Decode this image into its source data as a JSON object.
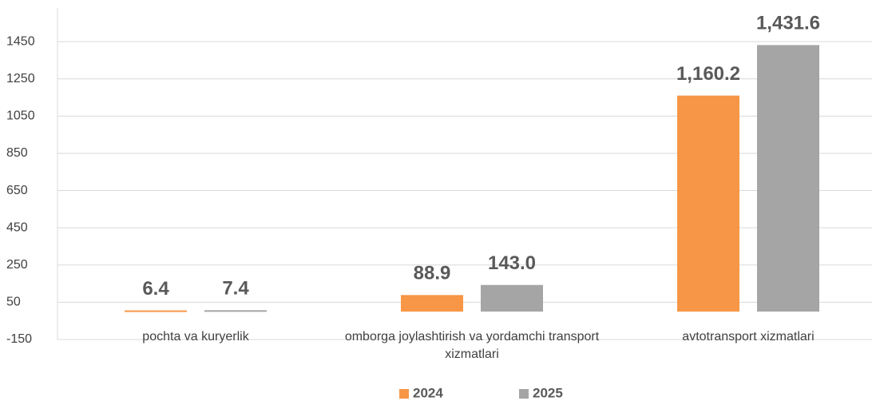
{
  "chart_data": {
    "type": "bar",
    "categories": [
      "pochta va kuryerlik",
      "omborga joylashtirish va yordamchi transport xizmatlari",
      "avtotransport xizmatlari"
    ],
    "series": [
      {
        "name": "2024",
        "color": "#f79646",
        "values": [
          6.4,
          88.9,
          1160.2
        ],
        "value_labels": [
          "6.4",
          "88.9",
          "1,160.2"
        ]
      },
      {
        "name": "2025",
        "color": "#a5a5a5",
        "values": [
          7.4,
          143.0,
          1431.6
        ],
        "value_labels": [
          "7.4",
          "143.0",
          "1,431.6"
        ]
      }
    ],
    "ylim": [
      -150,
      1650
    ],
    "yticks": [
      -150,
      50,
      250,
      450,
      650,
      850,
      1050,
      1250,
      1450
    ],
    "grid": true,
    "legend": "bottom"
  }
}
